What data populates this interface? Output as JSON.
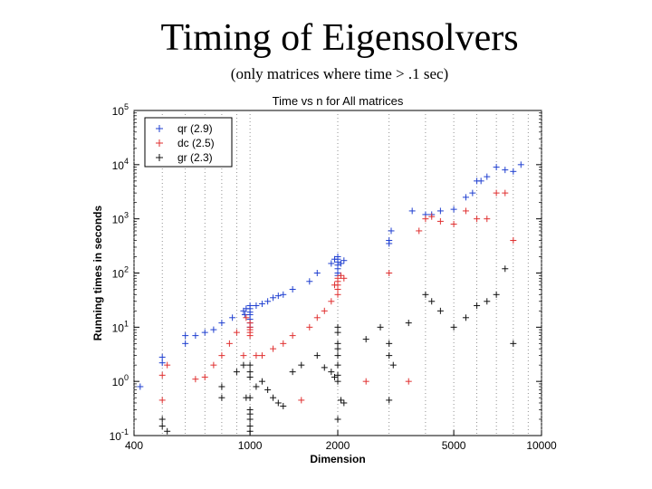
{
  "slide": {
    "title": "Timing of Eigensolvers",
    "subtitle": "(only matrices where time > .1 sec)"
  },
  "chart_data": {
    "type": "scatter",
    "title": "Time vs n for All matrices",
    "xlabel": "Dimension",
    "ylabel": "Running times in seconds",
    "xscale": "log",
    "yscale": "log",
    "xlim": [
      400,
      10000
    ],
    "ylim": [
      0.1,
      100000
    ],
    "grid": "vertical dotted",
    "legend_position": "top-left",
    "x_ticks": [
      {
        "value": 400,
        "label": "400"
      },
      {
        "value": 1000,
        "label": "1000"
      },
      {
        "value": 2000,
        "label": "2000"
      },
      {
        "value": 5000,
        "label": "5000"
      },
      {
        "value": 10000,
        "label": "10000"
      }
    ],
    "y_ticks": [
      {
        "value": 0.1,
        "base": "10",
        "exp": "-1"
      },
      {
        "value": 1,
        "base": "10",
        "exp": "0"
      },
      {
        "value": 10,
        "base": "10",
        "exp": "1"
      },
      {
        "value": 100,
        "base": "10",
        "exp": "2"
      },
      {
        "value": 1000,
        "base": "10",
        "exp": "3"
      },
      {
        "value": 10000,
        "base": "10",
        "exp": "4"
      },
      {
        "value": 100000,
        "base": "10",
        "exp": "5"
      }
    ],
    "series": [
      {
        "name": "qr (2.9)",
        "color": "#1f3fd0",
        "marker": "plus",
        "points": [
          [
            420,
            0.8
          ],
          [
            500,
            2.2
          ],
          [
            500,
            2.8
          ],
          [
            600,
            5
          ],
          [
            600,
            7
          ],
          [
            650,
            7
          ],
          [
            700,
            8
          ],
          [
            750,
            9
          ],
          [
            800,
            12
          ],
          [
            870,
            15
          ],
          [
            950,
            20
          ],
          [
            960,
            17
          ],
          [
            970,
            22
          ],
          [
            1000,
            25
          ],
          [
            1000,
            22
          ],
          [
            1000,
            19
          ],
          [
            1000,
            17
          ],
          [
            1000,
            14
          ],
          [
            1000,
            12
          ],
          [
            1000,
            10
          ],
          [
            1050,
            25
          ],
          [
            1100,
            27
          ],
          [
            1150,
            30
          ],
          [
            1200,
            35
          ],
          [
            1250,
            38
          ],
          [
            1300,
            40
          ],
          [
            1400,
            50
          ],
          [
            1600,
            70
          ],
          [
            1700,
            100
          ],
          [
            1900,
            150
          ],
          [
            1950,
            180
          ],
          [
            2000,
            200
          ],
          [
            2000,
            180
          ],
          [
            2000,
            160
          ],
          [
            2000,
            140
          ],
          [
            2000,
            120
          ],
          [
            2000,
            100
          ],
          [
            2000,
            90
          ],
          [
            2050,
            150
          ],
          [
            2100,
            170
          ],
          [
            3000,
            400
          ],
          [
            3000,
            350
          ],
          [
            3050,
            600
          ],
          [
            3600,
            1400
          ],
          [
            4000,
            1200
          ],
          [
            4200,
            1200
          ],
          [
            4500,
            1400
          ],
          [
            5000,
            1500
          ],
          [
            5500,
            2500
          ],
          [
            5800,
            3000
          ],
          [
            6000,
            5000
          ],
          [
            6200,
            5000
          ],
          [
            6500,
            6000
          ],
          [
            7000,
            9000
          ],
          [
            7500,
            8000
          ],
          [
            8000,
            7500
          ],
          [
            8500,
            10000
          ]
        ]
      },
      {
        "name": "dc (2.5)",
        "color": "#e03030",
        "marker": "plus",
        "points": [
          [
            500,
            0.45
          ],
          [
            500,
            1.3
          ],
          [
            520,
            2
          ],
          [
            650,
            1.1
          ],
          [
            700,
            1.2
          ],
          [
            750,
            2
          ],
          [
            800,
            3
          ],
          [
            850,
            5
          ],
          [
            900,
            8
          ],
          [
            950,
            3
          ],
          [
            970,
            15
          ],
          [
            1000,
            12
          ],
          [
            1000,
            10
          ],
          [
            1000,
            9
          ],
          [
            1000,
            8
          ],
          [
            1000,
            7
          ],
          [
            1050,
            3
          ],
          [
            1100,
            3
          ],
          [
            1200,
            4
          ],
          [
            1300,
            5
          ],
          [
            1400,
            7
          ],
          [
            1500,
            0.45
          ],
          [
            1600,
            10
          ],
          [
            1700,
            15
          ],
          [
            1800,
            20
          ],
          [
            1900,
            30
          ],
          [
            1950,
            60
          ],
          [
            2000,
            80
          ],
          [
            2000,
            70
          ],
          [
            2000,
            60
          ],
          [
            2000,
            50
          ],
          [
            2000,
            40
          ],
          [
            2050,
            90
          ],
          [
            2100,
            80
          ],
          [
            2500,
            1
          ],
          [
            3000,
            100
          ],
          [
            3500,
            1
          ],
          [
            3800,
            600
          ],
          [
            4000,
            1000
          ],
          [
            4200,
            1100
          ],
          [
            4500,
            900
          ],
          [
            5000,
            800
          ],
          [
            5500,
            1400
          ],
          [
            6000,
            1000
          ],
          [
            6500,
            1000
          ],
          [
            7000,
            3000
          ],
          [
            7500,
            3000
          ],
          [
            8000,
            400
          ]
        ]
      },
      {
        "name": "gr (2.3)",
        "color": "#111111",
        "marker": "plus",
        "points": [
          [
            500,
            0.15
          ],
          [
            500,
            0.2
          ],
          [
            520,
            0.12
          ],
          [
            800,
            0.5
          ],
          [
            800,
            0.8
          ],
          [
            900,
            1.5
          ],
          [
            950,
            2
          ],
          [
            970,
            0.5
          ],
          [
            1000,
            0.25
          ],
          [
            1000,
            0.2
          ],
          [
            1000,
            0.15
          ],
          [
            1000,
            0.12
          ],
          [
            1000,
            0.3
          ],
          [
            1000,
            0.5
          ],
          [
            1000,
            1.2
          ],
          [
            1000,
            1.5
          ],
          [
            1000,
            2
          ],
          [
            1050,
            0.8
          ],
          [
            1100,
            1
          ],
          [
            1150,
            0.7
          ],
          [
            1200,
            0.5
          ],
          [
            1250,
            0.4
          ],
          [
            1300,
            0.35
          ],
          [
            1400,
            1.5
          ],
          [
            1500,
            2
          ],
          [
            1700,
            3
          ],
          [
            1800,
            1.8
          ],
          [
            1900,
            1.5
          ],
          [
            1950,
            1.2
          ],
          [
            2000,
            0.2
          ],
          [
            2000,
            1
          ],
          [
            2000,
            1.3
          ],
          [
            2000,
            2
          ],
          [
            2000,
            3
          ],
          [
            2000,
            4
          ],
          [
            2000,
            5
          ],
          [
            2000,
            8
          ],
          [
            2000,
            10
          ],
          [
            2050,
            0.45
          ],
          [
            2100,
            0.4
          ],
          [
            2500,
            6
          ],
          [
            2800,
            10
          ],
          [
            3000,
            0.45
          ],
          [
            3000,
            3
          ],
          [
            3000,
            5
          ],
          [
            3100,
            2
          ],
          [
            3500,
            12
          ],
          [
            4000,
            40
          ],
          [
            4200,
            30
          ],
          [
            4500,
            20
          ],
          [
            5000,
            10
          ],
          [
            5500,
            15
          ],
          [
            6000,
            25
          ],
          [
            6500,
            30
          ],
          [
            7000,
            40
          ],
          [
            7500,
            120
          ],
          [
            8000,
            5
          ]
        ]
      }
    ]
  }
}
